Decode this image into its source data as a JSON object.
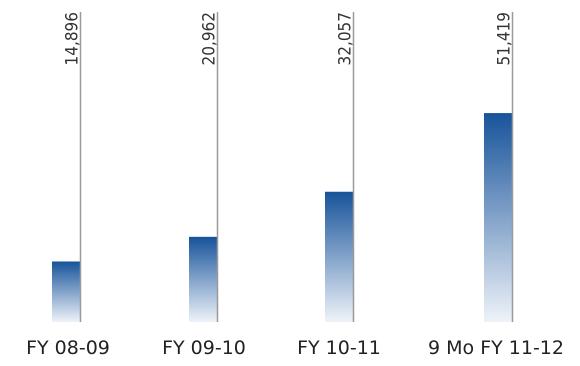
{
  "chart_data": {
    "type": "bar",
    "categories": [
      "FY 08-09",
      "FY 09-10",
      "FY 10-11",
      "9 Mo FY 11-12"
    ],
    "values": [
      14896,
      20962,
      32057,
      51419
    ],
    "value_labels": [
      "14,896",
      "20,962",
      "32,057",
      "51,419"
    ],
    "title": "",
    "xlabel": "",
    "ylabel": "",
    "ylim": [
      0,
      56000
    ],
    "grid": false,
    "legend": "none",
    "colors": {
      "bar_top": "#17539a",
      "bar_bottom": "#eef3f9",
      "leader": "#9a9a9a"
    }
  }
}
